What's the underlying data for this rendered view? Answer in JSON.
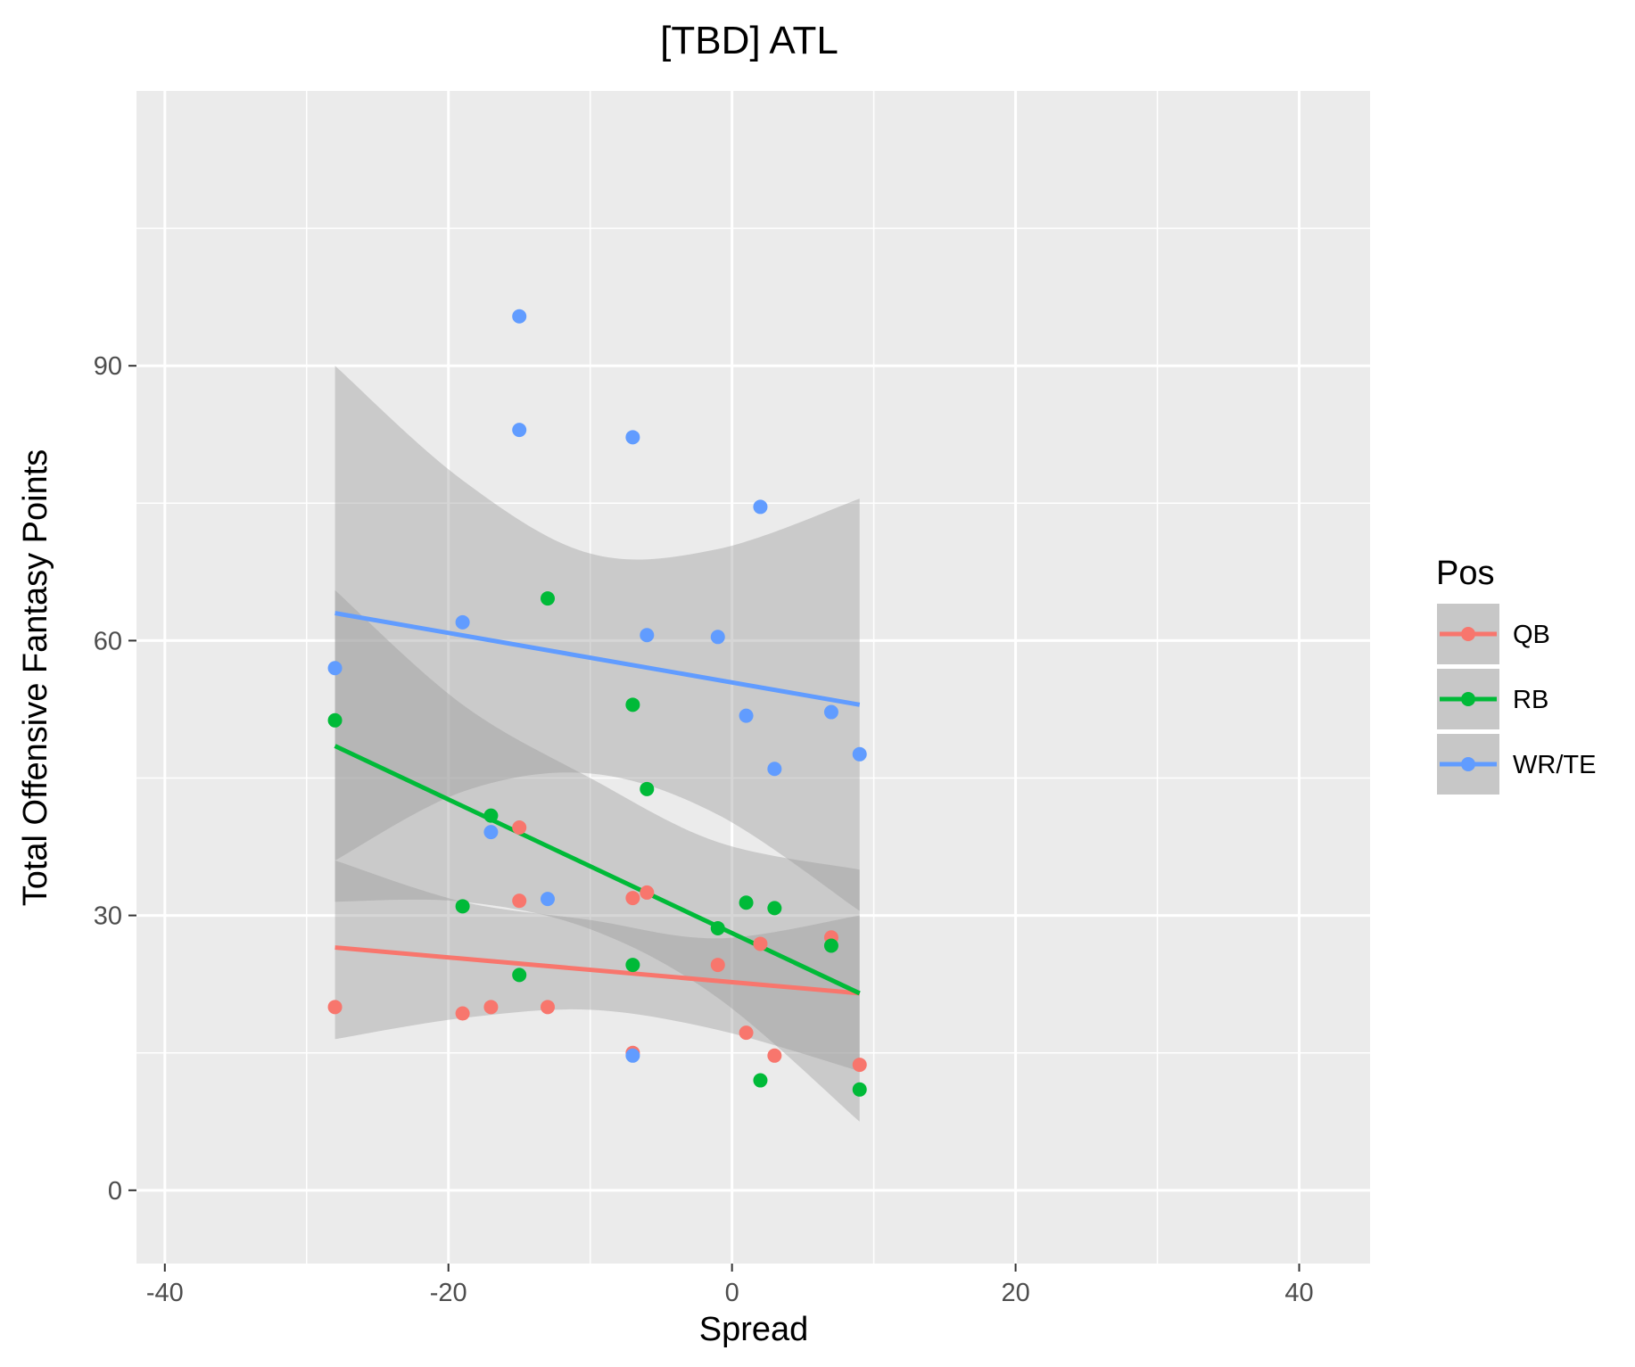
{
  "chart_data": {
    "type": "scatter",
    "title": "[TBD] ATL",
    "xlabel": "Spread",
    "ylabel": "Total Offensive Fantasy Points",
    "xlim": [
      -42,
      45
    ],
    "ylim": [
      -8,
      120
    ],
    "x_ticks": [
      -40,
      -20,
      0,
      20,
      40
    ],
    "x_tick_labels": [
      "-40",
      "-20",
      "0",
      "20",
      "40"
    ],
    "y_ticks": [
      0,
      30,
      60,
      90
    ],
    "y_tick_labels": [
      "0",
      "30",
      "60",
      "90"
    ],
    "x_minor_ticks": [
      -30,
      -10,
      10,
      30
    ],
    "y_minor_ticks": [
      15,
      45,
      75,
      105
    ],
    "grid": true,
    "legend": {
      "title": "Pos",
      "position": "right"
    },
    "series": [
      {
        "name": "QB",
        "color": "#F8766D",
        "points": [
          [
            -28,
            20
          ],
          [
            -19,
            19.3
          ],
          [
            -17,
            20
          ],
          [
            -15,
            31.6
          ],
          [
            -15,
            39.6
          ],
          [
            -13,
            20
          ],
          [
            -7,
            15
          ],
          [
            -7,
            31.9
          ],
          [
            -6,
            32.5
          ],
          [
            -1,
            24.6
          ],
          [
            1,
            17.2
          ],
          [
            2,
            26.9
          ],
          [
            3,
            14.7
          ],
          [
            7,
            27.6
          ],
          [
            9,
            13.7
          ]
        ],
        "fit": {
          "x": [
            -28,
            9
          ],
          "y": [
            26.5,
            21.5
          ]
        },
        "band": {
          "x": [
            -28,
            -19,
            -10,
            -1,
            9
          ],
          "lower": [
            16.5,
            18.8,
            19.7,
            17.5,
            13.0
          ],
          "upper": [
            36.0,
            31.5,
            29.5,
            27.5,
            30.0
          ]
        }
      },
      {
        "name": "RB",
        "color": "#00BA38",
        "points": [
          [
            -28,
            51.3
          ],
          [
            -19,
            31
          ],
          [
            -17,
            40.9
          ],
          [
            -15,
            23.5
          ],
          [
            -13,
            64.6
          ],
          [
            -7,
            53
          ],
          [
            -7,
            24.6
          ],
          [
            -6,
            43.8
          ],
          [
            -1,
            28.6
          ],
          [
            1,
            31.4
          ],
          [
            2,
            12
          ],
          [
            3,
            30.8
          ],
          [
            7,
            26.7
          ],
          [
            9,
            11
          ]
        ],
        "fit": {
          "x": [
            -28,
            9
          ],
          "y": [
            48.5,
            21.5
          ]
        },
        "band": {
          "x": [
            -28,
            -19,
            -10,
            -1,
            9
          ],
          "lower": [
            31.5,
            31.5,
            28.5,
            21.0,
            7.5
          ],
          "upper": [
            65.5,
            53.0,
            45.0,
            38.0,
            35.0
          ]
        }
      },
      {
        "name": "WR/TE",
        "color": "#619CFF",
        "points": [
          [
            -28,
            57
          ],
          [
            -19,
            62
          ],
          [
            -17,
            39.1
          ],
          [
            -15,
            95.4
          ],
          [
            -15,
            83
          ],
          [
            -13,
            31.8
          ],
          [
            -7,
            82.2
          ],
          [
            -7,
            14.7
          ],
          [
            -6,
            60.6
          ],
          [
            -1,
            60.4
          ],
          [
            1,
            51.8
          ],
          [
            2,
            74.6
          ],
          [
            3,
            46
          ],
          [
            7,
            52.2
          ],
          [
            9,
            47.6
          ]
        ],
        "fit": {
          "x": [
            -28,
            9
          ],
          "y": [
            63,
            53
          ]
        },
        "band": {
          "x": [
            -28,
            -19,
            -10,
            -1,
            9
          ],
          "lower": [
            36.0,
            43.5,
            45.5,
            41.0,
            30.5
          ],
          "upper": [
            90.0,
            77.5,
            69.5,
            70.0,
            75.5
          ]
        }
      }
    ]
  }
}
